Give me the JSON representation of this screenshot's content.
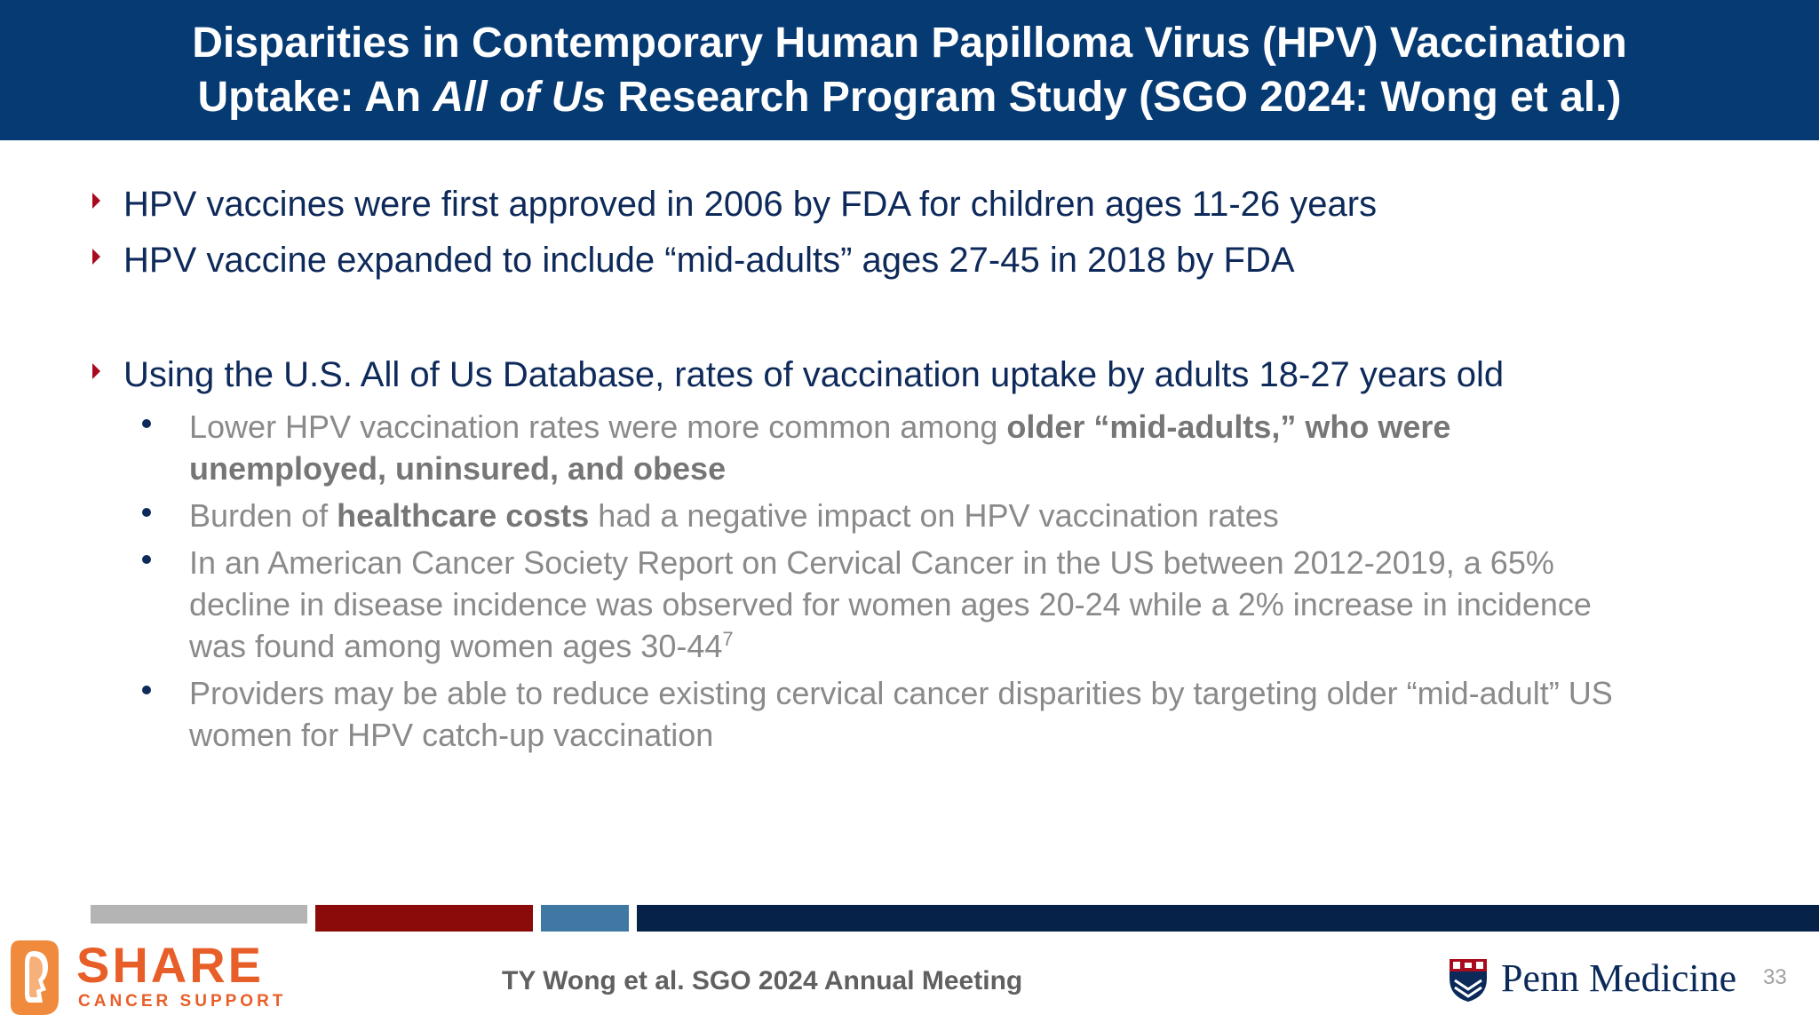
{
  "header": {
    "line1": "Disparities in Contemporary Human Papilloma Virus (HPV) Vaccination",
    "line2_prefix": "Uptake: An ",
    "line2_italic": "All of Us",
    "line2_suffix": " Research Program Study (SGO 2024: Wong et al.)"
  },
  "bullets": {
    "b1": "HPV vaccines were first approved in 2006 by FDA for children ages 11-26 years",
    "b2": "HPV vaccine expanded to include “mid-adults” ages 27-45 in 2018 by FDA",
    "b3": "Using the U.S. All of Us Database, rates of vaccination uptake by adults 18-27 years old",
    "sub1": {
      "line1_plain": "Lower HPV vaccination rates were more common among ",
      "line1_bold": "older “mid-adults,” who were",
      "line2_bold": "unemployed, uninsured, and obese"
    },
    "sub2": {
      "plain1": "Burden of ",
      "bold": "healthcare costs",
      "plain2": " had a negative impact on HPV vaccination rates"
    },
    "sub3": {
      "line1": "In an American Cancer Society Report on Cervical Cancer in the US between 2012-2019, a 65%",
      "line2": "decline in disease incidence was observed for women ages 20-24 while a 2% increase in incidence",
      "line3": "was found among women ages 30-44",
      "sup": "7"
    },
    "sub4": {
      "line1": "Providers may be able to reduce existing cervical cancer disparities by targeting older “mid-adult” US",
      "line2": "women for HPV catch-up vaccination"
    }
  },
  "footer": {
    "citation": "TY Wong et al. SGO 2024 Annual Meeting",
    "share_logo_word": "SHARE",
    "share_logo_sub": "CANCER SUPPORT",
    "penn_logo_text": "Penn Medicine",
    "page_number": "33"
  },
  "colors": {
    "header_bg": "#063a73",
    "bar_gray": "#b4b4b4",
    "bar_red": "#8b0a0a",
    "bar_blue": "#3f78a3",
    "bar_navy": "#072249",
    "bullet_red": "#a80b1e",
    "share_orange": "#e85e28"
  }
}
